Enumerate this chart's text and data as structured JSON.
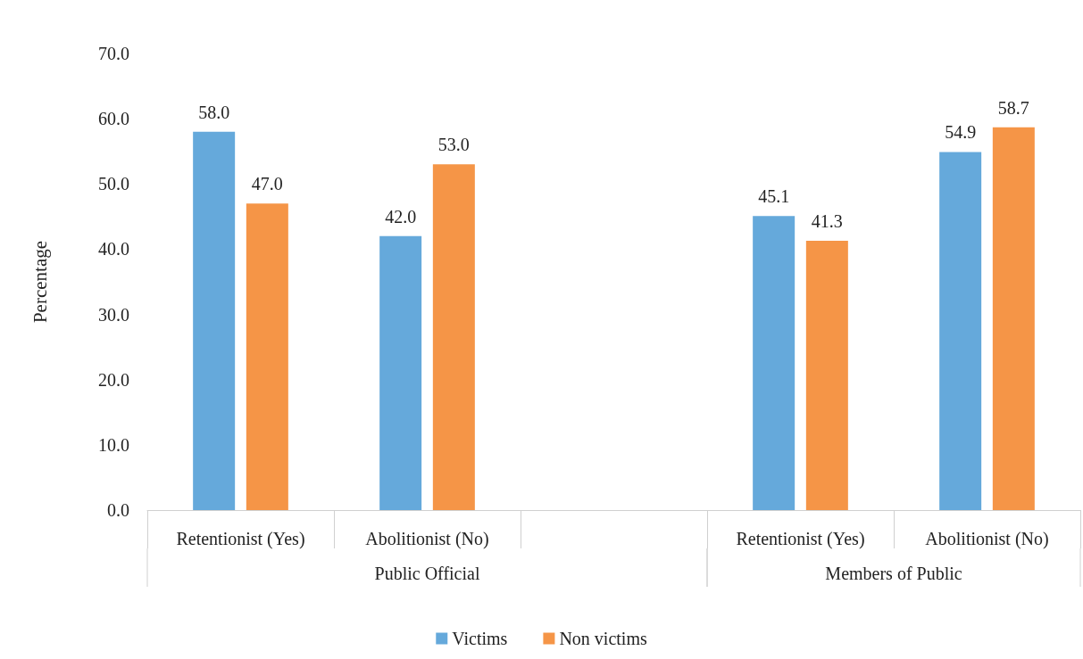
{
  "chart_data": {
    "type": "bar",
    "ylabel": "Percentage",
    "categories": [
      "Retentionist (Yes)",
      "Abolitionist (No)",
      null,
      "Retentionist (Yes)",
      "Abolitionist (No)"
    ],
    "annotations": [
      "Public Official",
      "Members of Public"
    ],
    "series": [
      {
        "name": "Victims",
        "color": "#65a9db",
        "values": [
          58.0,
          42.0,
          null,
          45.1,
          54.9
        ],
        "value_labels": [
          "58.0",
          "42.0",
          null,
          "45.1",
          "54.9"
        ]
      },
      {
        "name": "Non victims",
        "color": "#f59547",
        "values": [
          47.0,
          53.0,
          null,
          41.3,
          58.7
        ],
        "value_labels": [
          "47.0",
          "53.0",
          null,
          "41.3",
          "58.7"
        ]
      }
    ],
    "ylim": [
      0,
      70
    ],
    "yticks": [
      {
        "value": 0,
        "label": "0.0"
      },
      {
        "value": 10,
        "label": "10.0"
      },
      {
        "value": 20,
        "label": "20.0"
      },
      {
        "value": 30,
        "label": "30.0"
      },
      {
        "value": 40,
        "label": "40.0"
      },
      {
        "value": 50,
        "label": "50.0"
      },
      {
        "value": 60,
        "label": "60.0"
      },
      {
        "value": 70,
        "label": "70.0"
      }
    ],
    "grid": false,
    "legend": "bottom"
  }
}
